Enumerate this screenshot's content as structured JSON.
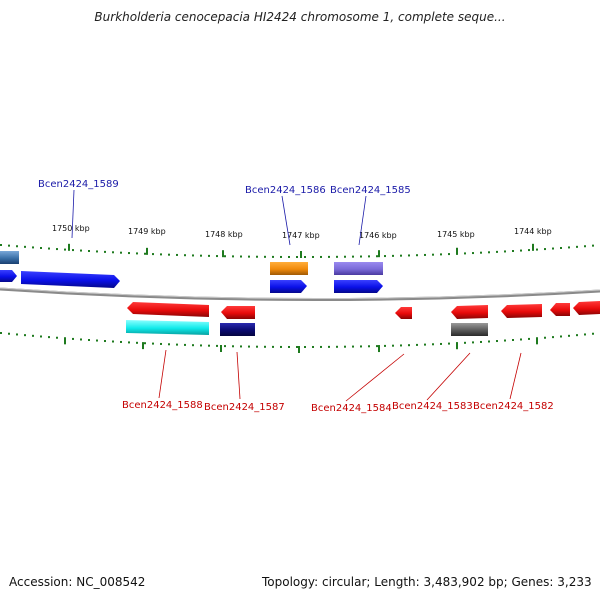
{
  "title": "Burkholderia cenocepacia HI2424 chromosome 1, complete seque...",
  "footer": {
    "accession": "Accession: NC_008542",
    "summary": "Topology: circular; Length: 3,483,902 bp; Genes: 3,233"
  },
  "scale": {
    "labels": [
      "1750 kbp",
      "1749 kbp",
      "1748 kbp",
      "1747 kbp",
      "1746 kbp",
      "1745 kbp",
      "1744 kbp"
    ],
    "tick_color": "#1e7a1e"
  },
  "colors": {
    "backbone": "#8a8a8a",
    "gene_blue": "#0a10e8",
    "gene_red": "#e80a0a",
    "gene_orange": "#f08a0a",
    "gene_purple": "#7a6ad8",
    "gene_cyan": "#10eaea",
    "gene_navy": "#0a0a70",
    "gene_gray": "#5a5a5a",
    "gene_steelblue": "#3a70a8"
  },
  "gene_labels": {
    "top": [
      "Bcen2424_1589",
      "Bcen2424_1586",
      "Bcen2424_1585"
    ],
    "bottom": [
      "Bcen2424_1588",
      "Bcen2424_1587",
      "Bcen2424_1584",
      "Bcen2424_1583",
      "Bcen2424_1582"
    ]
  }
}
